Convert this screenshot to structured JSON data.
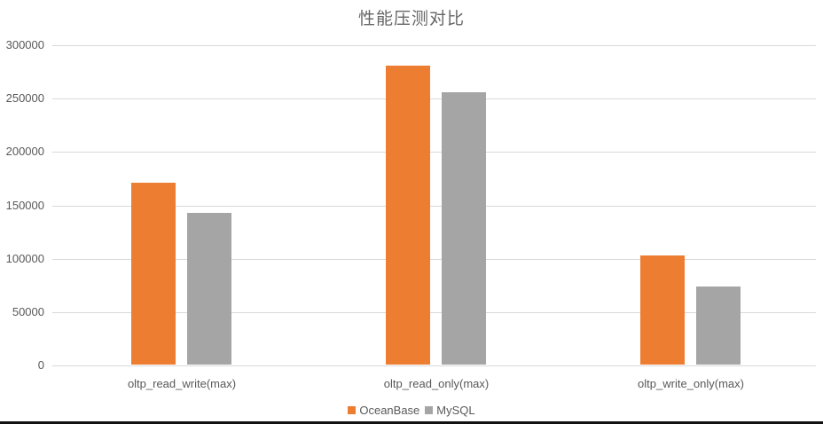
{
  "chart_data": {
    "type": "bar",
    "title": "性能压测对比",
    "xlabel": "",
    "ylabel": "",
    "categories": [
      "oltp_read_write(max)",
      "oltp_read_only(max)",
      "oltp_write_only(max)"
    ],
    "series": [
      {
        "name": "OceanBase",
        "color": "#ED7D31",
        "values": [
          171000,
          281000,
          103000
        ]
      },
      {
        "name": "MySQL",
        "color": "#A5A5A5",
        "values": [
          143000,
          256000,
          74000
        ]
      }
    ],
    "ylim": [
      0,
      300000
    ],
    "yticks": [
      "0",
      "50000",
      "100000",
      "150000",
      "200000",
      "250000",
      "300000"
    ],
    "grid": true,
    "legend_position": "bottom"
  }
}
